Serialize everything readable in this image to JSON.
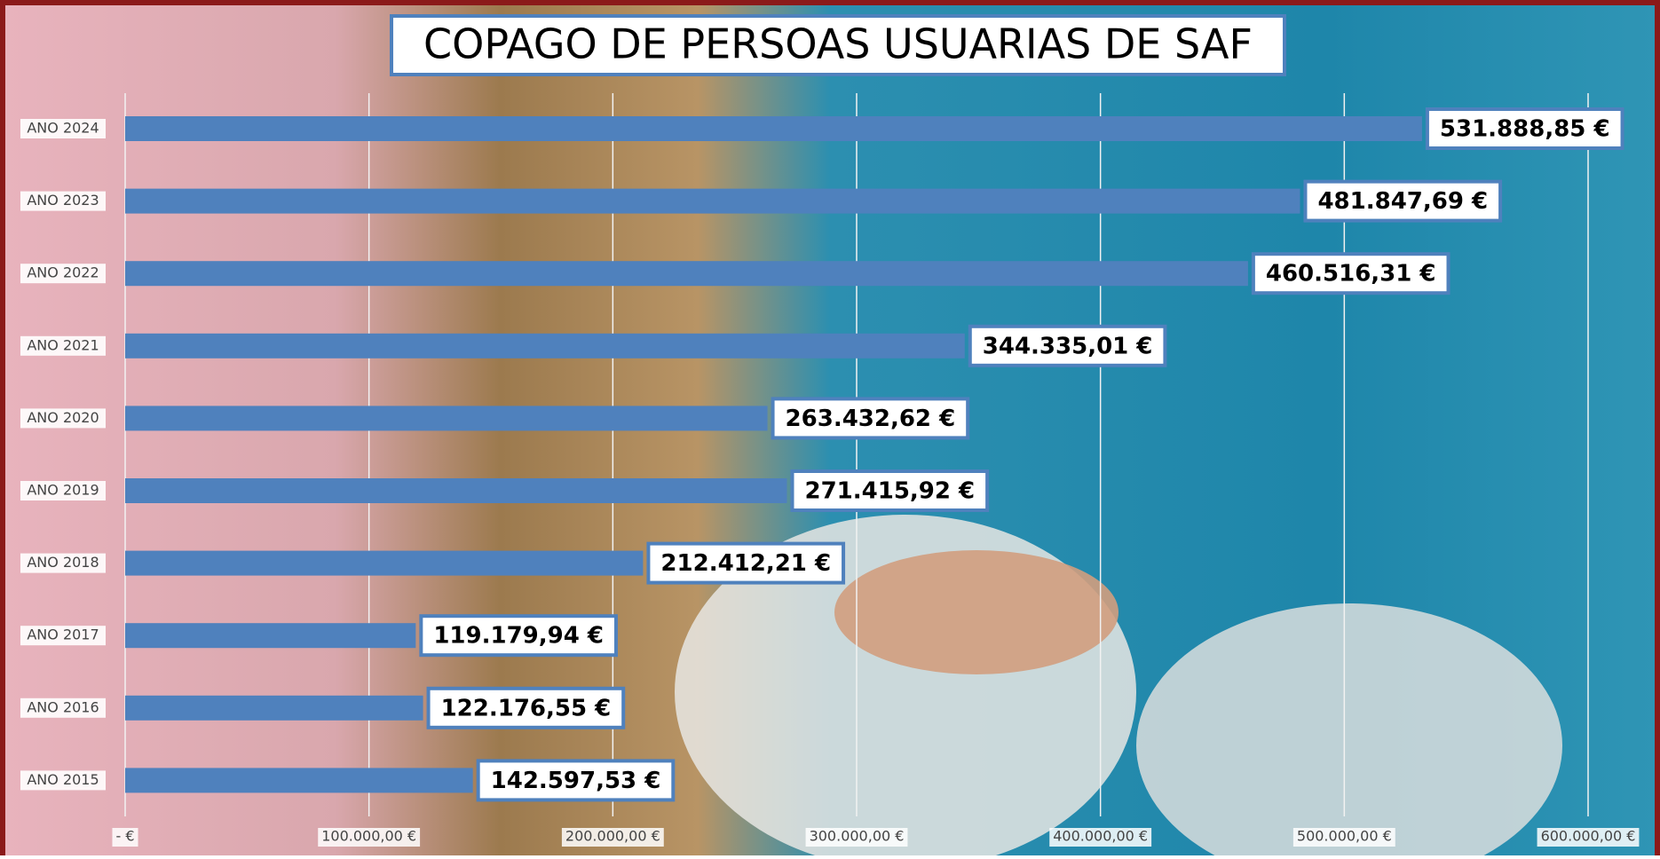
{
  "chart_data": {
    "type": "bar",
    "orientation": "horizontal",
    "title": "COPAGO DE PERSOAS USUARIAS DE SAF",
    "categories": [
      "ANO 2024",
      "ANO 2023",
      "ANO 2022",
      "ANO 2021",
      "ANO 2020",
      "ANO 2019",
      "ANO 2018",
      "ANO 2017",
      "ANO 2016",
      "ANO 2015"
    ],
    "values": [
      531888.85,
      481847.69,
      460516.31,
      344335.01,
      263432.62,
      271415.92,
      212412.21,
      119179.94,
      122176.55,
      142597.53
    ],
    "value_labels": [
      "531.888,85 €",
      "481.847,69 €",
      "460.516,31 €",
      "344.335,01 €",
      "263.432,62 €",
      "271.415,92 €",
      "212.412,21 €",
      "119.179,94 €",
      "122.176,55 €",
      "142.597,53 €"
    ],
    "color": "#4f81bd",
    "xlim": [
      0,
      600000
    ],
    "xticks": [
      {
        "value": 0,
        "label": "-  €"
      },
      {
        "value": 100000,
        "label": "100.000,00 €"
      },
      {
        "value": 200000,
        "label": "200.000,00 €"
      },
      {
        "value": 300000,
        "label": "300.000,00 €"
      },
      {
        "value": 400000,
        "label": "400.000,00 €"
      },
      {
        "value": 500000,
        "label": "500.000,00 €"
      },
      {
        "value": 600000,
        "label": "600.000,00 €"
      }
    ],
    "grid": true
  }
}
